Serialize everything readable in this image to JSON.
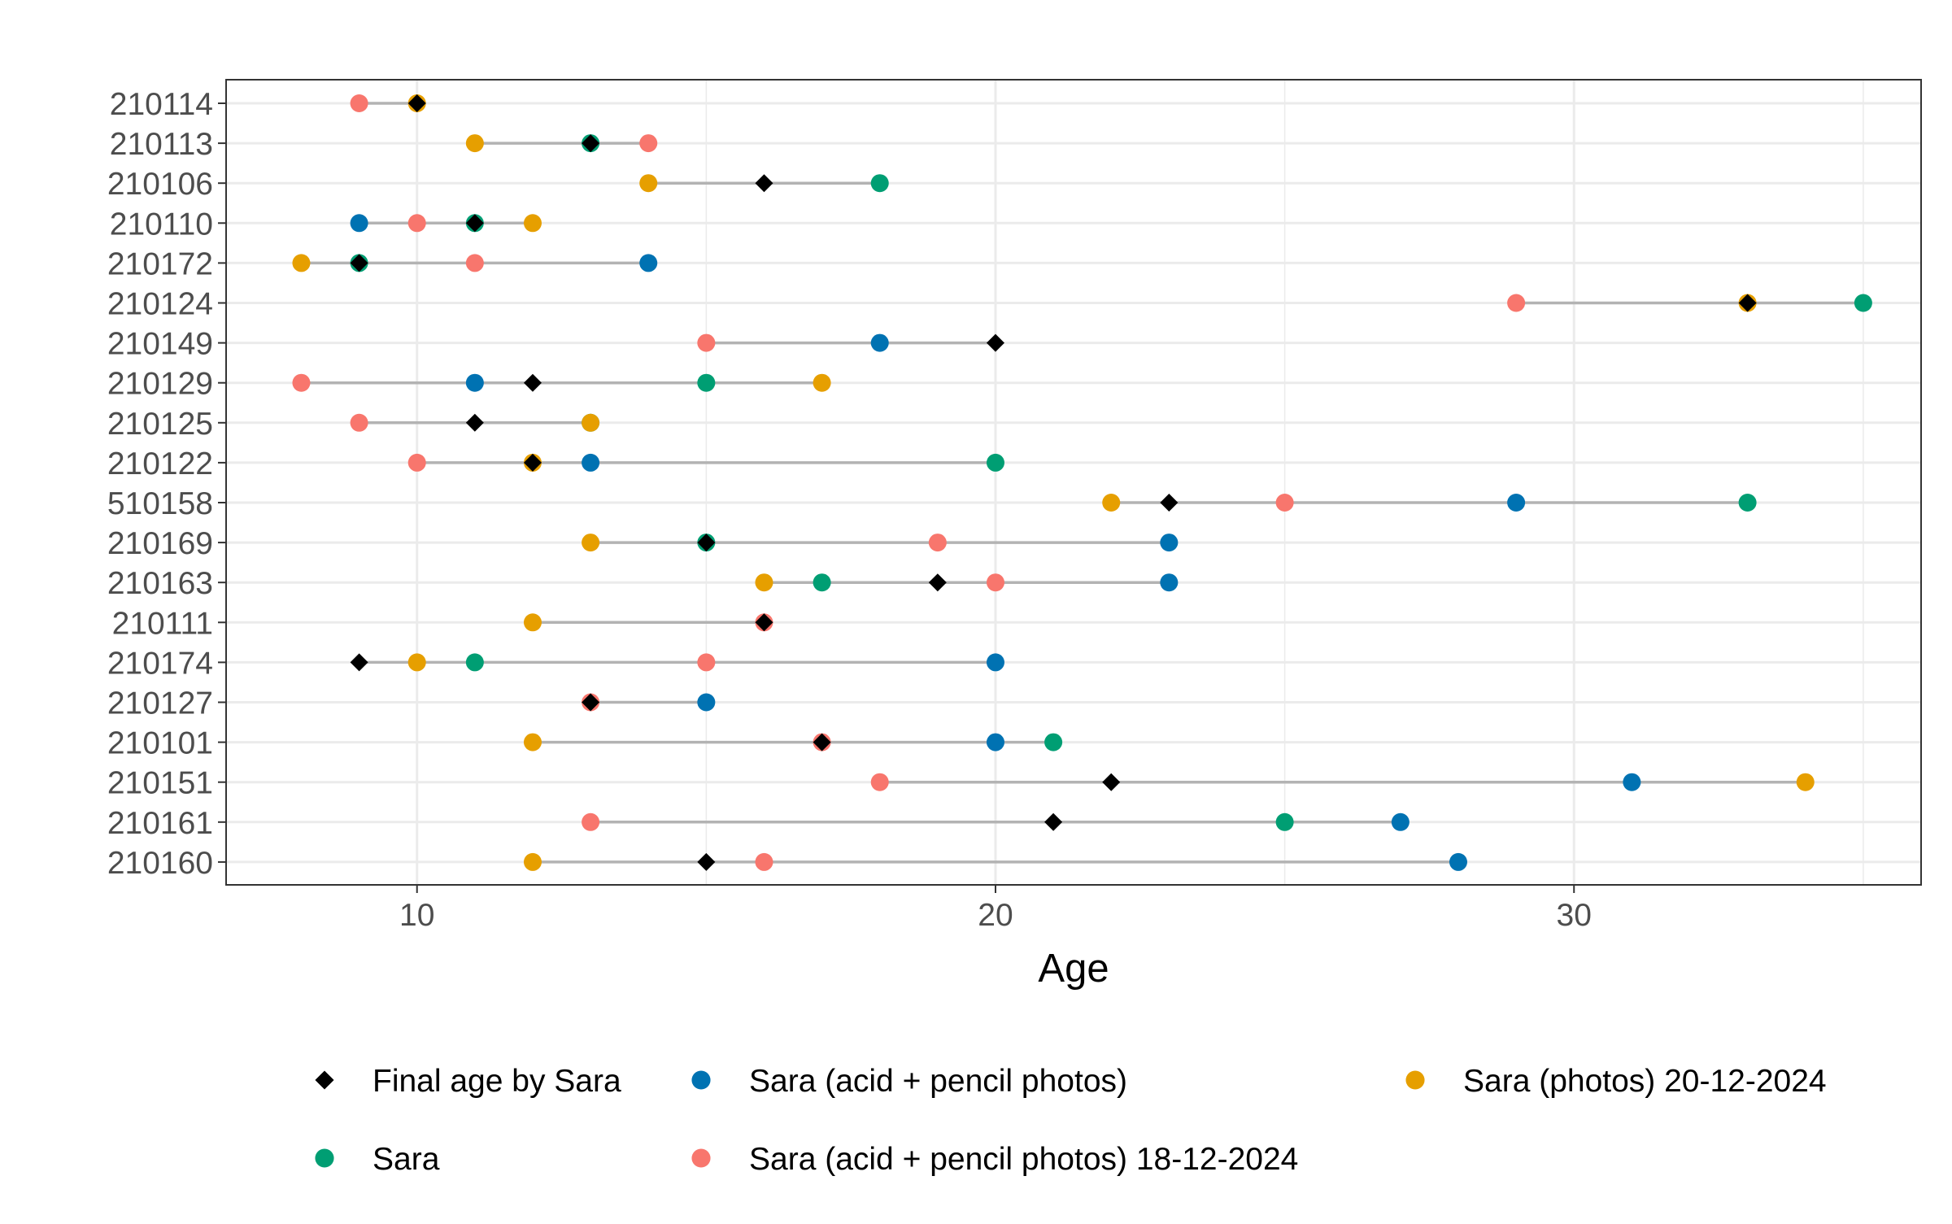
{
  "chart_data": {
    "type": "scatter",
    "title": "",
    "xlabel": "Age",
    "ylabel": "",
    "xlim": [
      6.7,
      36.0
    ],
    "x_ticks": [
      10,
      20,
      30
    ],
    "grid": true,
    "legend_position": "bottom",
    "categories": [
      "210114",
      "210113",
      "210106",
      "210110",
      "210172",
      "210124",
      "210149",
      "210129",
      "210125",
      "210122",
      "510158",
      "210169",
      "210163",
      "210111",
      "210174",
      "210127",
      "210101",
      "210151",
      "210161",
      "210160"
    ],
    "series": [
      {
        "name": "Final age by Sara",
        "marker": "diamond",
        "color": "#000000",
        "values": [
          10,
          13,
          16,
          11,
          9,
          33,
          20,
          12,
          11,
          12,
          23,
          15,
          19,
          16,
          9,
          13,
          17,
          22,
          21,
          15
        ]
      },
      {
        "name": "Sara (acid + pencil photos)",
        "marker": "circle",
        "color": "#0072B2",
        "values": [
          null,
          null,
          null,
          9,
          14,
          null,
          18,
          11,
          null,
          13,
          29,
          23,
          23,
          null,
          20,
          15,
          20,
          31,
          27,
          28
        ]
      },
      {
        "name": "Sara (photos) 20-12-2024",
        "marker": "circle",
        "color": "#E69F00",
        "values": [
          10,
          11,
          14,
          12,
          8,
          33,
          null,
          17,
          13,
          12,
          22,
          13,
          16,
          12,
          10,
          null,
          12,
          34,
          null,
          12
        ]
      },
      {
        "name": "Sara",
        "marker": "circle",
        "color": "#009E73",
        "values": [
          null,
          13,
          18,
          11,
          9,
          35,
          null,
          15,
          13,
          20,
          33,
          15,
          17,
          null,
          11,
          null,
          21,
          null,
          25,
          null
        ]
      },
      {
        "name": "Sara (acid + pencil photos) 18-12-2024",
        "marker": "circle",
        "color": "#F8766D",
        "values": [
          9,
          14,
          null,
          10,
          11,
          29,
          15,
          8,
          9,
          10,
          25,
          19,
          20,
          16,
          15,
          13,
          17,
          18,
          13,
          16
        ]
      }
    ],
    "legend": [
      {
        "label": "Final age by Sara",
        "marker": "diamond",
        "color": "#000000"
      },
      {
        "label": "Sara (acid + pencil photos)",
        "marker": "circle",
        "color": "#0072B2"
      },
      {
        "label": "Sara (photos) 20-12-2024",
        "marker": "circle",
        "color": "#E69F00"
      },
      {
        "label": "Sara",
        "marker": "circle",
        "color": "#009E73"
      },
      {
        "label": "Sara (acid + pencil photos) 18-12-2024",
        "marker": "circle",
        "color": "#F8766D"
      }
    ]
  }
}
